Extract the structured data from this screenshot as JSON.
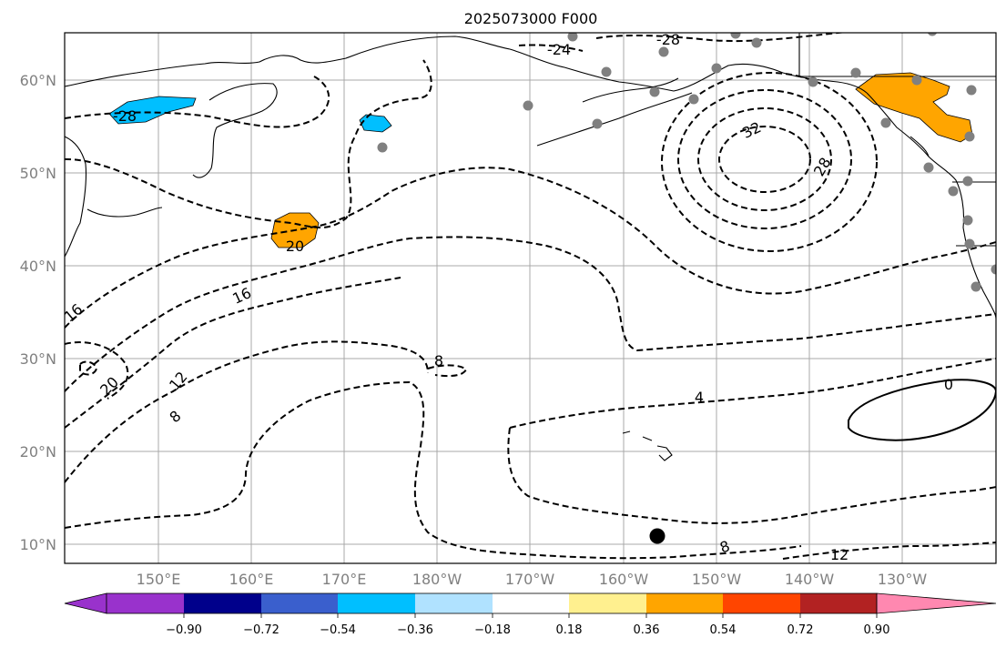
{
  "title": "2025073000 F000",
  "map": {
    "lat_ticks": [
      "60°N",
      "50°N",
      "40°N",
      "30°N",
      "20°N",
      "10°N"
    ],
    "lon_ticks": [
      "150°E",
      "160°E",
      "170°E",
      "180°W",
      "170°W",
      "160°W",
      "150°W",
      "140°W",
      "130°W"
    ],
    "contour_labels": [
      "-24",
      "-28",
      "-28",
      "32",
      "28",
      "20",
      "16",
      "16",
      "20",
      "12",
      "8",
      "8",
      "4",
      "0",
      "8",
      "12"
    ],
    "colors": {
      "coast": "#000000",
      "station": "#808080",
      "storm": "#000000",
      "positive": "#ffa500",
      "negative": "#00bfff"
    }
  },
  "colorbar": {
    "ticks": [
      "−0.90",
      "−0.72",
      "−0.54",
      "−0.36",
      "−0.18",
      "0.18",
      "0.36",
      "0.54",
      "0.72",
      "0.90"
    ],
    "colors": [
      "#9932cc",
      "#00008b",
      "#3a5fcd",
      "#00bfff",
      "#b0e2ff",
      "#ffffff",
      "#fff08f",
      "#ffa500",
      "#ff4500",
      "#b22222",
      "#ff88b0"
    ]
  }
}
